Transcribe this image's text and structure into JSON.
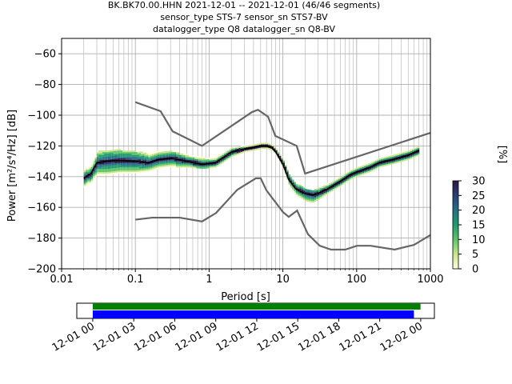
{
  "title": {
    "line1": "BK.BK70.00.HHN   2021-12-01 -- 2021-12-01  (46/46 segments)",
    "line2": "sensor_type STS-7 sensor_sn STS7-BV",
    "line3": "datalogger_type Q8 datalogger_sn Q8-BV"
  },
  "chart_data": [
    {
      "type": "heatmap",
      "xlabel": "Period [s]",
      "ylabel": "Power [m²/s⁴/Hz] [dB]",
      "x_scale": "log",
      "xlim": [
        0.01,
        1000
      ],
      "ylim": [
        -200,
        -50
      ],
      "x_ticks": [
        "0.01",
        "0.1",
        "1",
        "10",
        "100",
        "1000"
      ],
      "y_ticks": [
        "−200",
        "−180",
        "−160",
        "−140",
        "−120",
        "−100",
        "−80",
        "−60"
      ],
      "grid": true,
      "colorbar": {
        "label": "[%]",
        "range": [
          0,
          30
        ],
        "ticks": [
          "0",
          "5",
          "10",
          "15",
          "20",
          "25",
          "30"
        ],
        "colors": [
          "#ffffe0",
          "#c9e58a",
          "#5cc46a",
          "#1e9a6e",
          "#266f86",
          "#2c3f78",
          "#2b1642"
        ]
      },
      "series": [
        {
          "role": "mean",
          "color": "#000000",
          "x": [
            0.02,
            0.025,
            0.03,
            0.04,
            0.06,
            0.1,
            0.15,
            0.2,
            0.3,
            0.5,
            0.8,
            1.2,
            1.5,
            2,
            3,
            4,
            5,
            6,
            7,
            8,
            10,
            12,
            15,
            20,
            25,
            30,
            40,
            60,
            80,
            100,
            150,
            200,
            300,
            500,
            700
          ],
          "y": [
            -141,
            -138,
            -131,
            -130,
            -129.5,
            -130,
            -131,
            -129,
            -128,
            -130,
            -132,
            -131,
            -128,
            -124,
            -122,
            -121,
            -120,
            -120,
            -121,
            -124,
            -132,
            -142,
            -148,
            -151,
            -152,
            -151,
            -148,
            -143,
            -139,
            -137,
            -134,
            -131,
            -129,
            -126,
            -123
          ]
        },
        {
          "role": "upper-noise-model",
          "color": "#666666",
          "x": [
            0.1,
            0.22,
            0.32,
            0.8,
            3.8,
            4.6,
            6.3,
            7.9,
            15.4,
            20,
            1000
          ],
          "y": [
            -91.5,
            -97.4,
            -110.5,
            -120,
            -98,
            -96.5,
            -101,
            -113.5,
            -120,
            -138,
            -111.5
          ]
        },
        {
          "role": "lower-noise-model",
          "color": "#666666",
          "x": [
            0.1,
            0.17,
            0.4,
            0.8,
            1.24,
            2.4,
            4.3,
            5,
            6,
            10,
            12,
            15.6,
            21.9,
            31.6,
            45,
            70,
            101,
            154,
            328,
            600,
            1000
          ],
          "y": [
            -168,
            -166.7,
            -166.7,
            -169.2,
            -163.7,
            -148.6,
            -141.1,
            -141.1,
            -149,
            -163,
            -166.2,
            -162.1,
            -177.5,
            -185,
            -187.5,
            -187.5,
            -185,
            -185,
            -187.5,
            -184.4,
            -178
          ]
        }
      ],
      "density": {
        "x": [
          0.02,
          0.025,
          0.03,
          0.04,
          0.06,
          0.1,
          0.15,
          0.2,
          0.3,
          0.5,
          0.8,
          1.2,
          1.5,
          2,
          3,
          4,
          5,
          6,
          7,
          8,
          10,
          12,
          15,
          20,
          25,
          30,
          40,
          60,
          80,
          100,
          150,
          200,
          300,
          500,
          700
        ],
        "upper": [
          -136,
          -133,
          -124,
          -123,
          -123,
          -124,
          -125,
          -124,
          -124,
          -126,
          -128,
          -128,
          -125,
          -122,
          -120,
          -119,
          -118,
          -118,
          -119,
          -122,
          -129,
          -139,
          -145,
          -148,
          -149,
          -148,
          -145,
          -140,
          -136,
          -134,
          -131,
          -128,
          -126,
          -123,
          -120
        ],
        "lower": [
          -147,
          -143,
          -139,
          -139,
          -138,
          -138,
          -137,
          -135,
          -134,
          -134,
          -135,
          -134,
          -131,
          -127,
          -124,
          -123,
          -122,
          -122,
          -123,
          -126,
          -135,
          -146,
          -152,
          -156,
          -157,
          -155,
          -151,
          -146,
          -142,
          -140,
          -137,
          -134,
          -132,
          -129,
          -126
        ]
      }
    },
    {
      "type": "timeline",
      "xlim": [
        "2021-11-30 22:50",
        "2021-12-02 01:00"
      ],
      "x_ticks": [
        "12-01 00",
        "12-01 03",
        "12-01 06",
        "12-01 09",
        "12-01 12",
        "12-01 15",
        "12-01 18",
        "12-01 21",
        "12-02 00"
      ],
      "bars": [
        {
          "role": "data-available",
          "color": "#008000",
          "start": "2021-12-01 00:00",
          "end": "2021-12-01 23:59"
        },
        {
          "role": "psd-segments",
          "color": "#0000ff",
          "start": "2021-12-01 00:00",
          "end": "2021-12-01 23:30"
        }
      ]
    }
  ]
}
